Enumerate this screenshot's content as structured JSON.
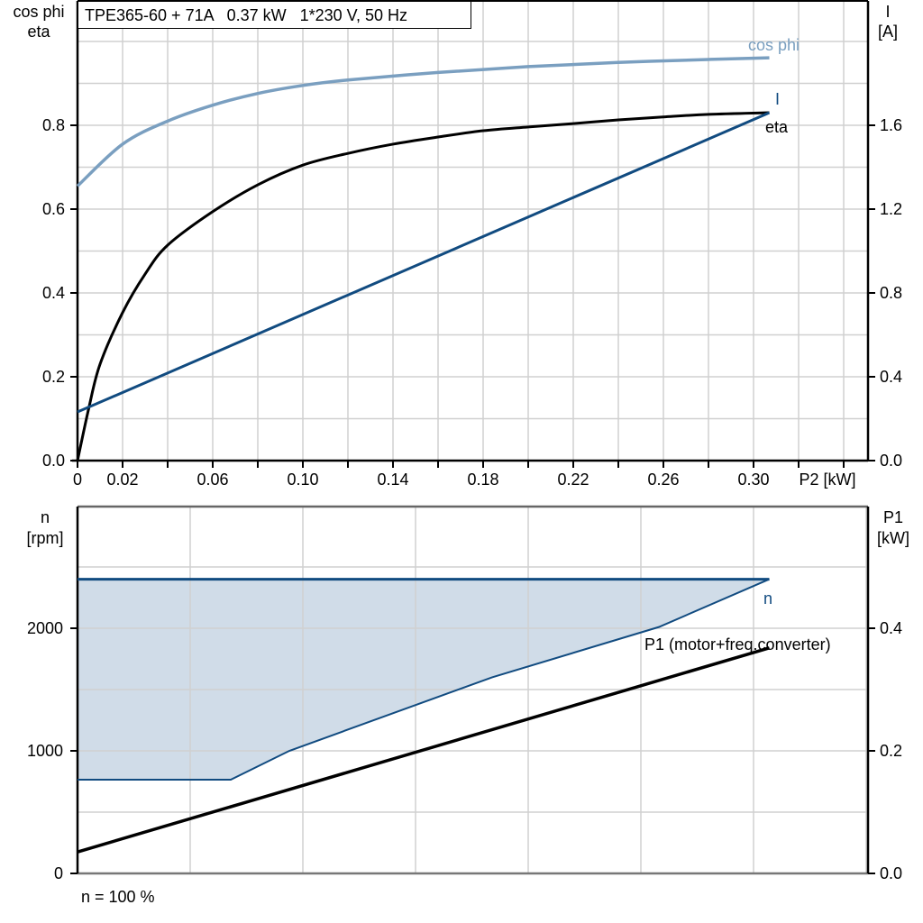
{
  "title": "TPE365-60 + 71A   0.37 kW   1*230 V, 50 Hz",
  "colors": {
    "cos_phi": "#7a9fc0",
    "eta": "#000000",
    "current": "#114b80",
    "speed": "#114b80",
    "speed_fill": "#d0dce8",
    "p1": "#000000",
    "grid": "#d0d0d0"
  },
  "top_chart": {
    "left_axis_label_line1": "cos phi",
    "left_axis_label_line2": "eta",
    "right_axis_label_line1": "I",
    "right_axis_label_line2": "[A]",
    "x_axis_label": "P2 [kW]",
    "x_tick_labels": [
      "0",
      "0.02",
      "0.06",
      "0.10",
      "0.14",
      "0.18",
      "0.22",
      "0.26",
      "0.30"
    ],
    "left_tick_labels": [
      "0.0",
      "0.2",
      "0.4",
      "0.6",
      "0.8"
    ],
    "right_tick_labels": [
      "0.0",
      "0.4",
      "0.8",
      "1.2",
      "1.6"
    ],
    "curve_labels": {
      "cos_phi": "cos phi",
      "I": "I",
      "eta": "eta"
    }
  },
  "bottom_chart": {
    "left_axis_label_line1": "n",
    "left_axis_label_line2": "[rpm]",
    "right_axis_label_line1": "P1",
    "right_axis_label_line2": "[kW]",
    "left_tick_labels": [
      "0",
      "1000",
      "2000"
    ],
    "right_tick_labels": [
      "0.0",
      "0.2",
      "0.4"
    ],
    "curve_labels": {
      "n": "n",
      "P1": "P1 (motor+freq.converter)"
    },
    "footnote": "n = 100 %"
  },
  "chart_data": [
    {
      "type": "line",
      "title": "TPE365-60 + 71A   0.37 kW   1*230 V, 50 Hz",
      "xlabel": "P2 [kW]",
      "ylabel": "cos phi / eta",
      "y2label": "I [A]",
      "xlim": [
        0,
        0.35
      ],
      "ylim": [
        0,
        1.09
      ],
      "y2lim": [
        0,
        2.18
      ],
      "grid": true,
      "x_ticks": [
        0,
        0.02,
        0.06,
        0.1,
        0.14,
        0.18,
        0.22,
        0.26,
        0.3
      ],
      "series": [
        {
          "name": "cos phi",
          "axis": "left",
          "x": [
            0,
            0.02,
            0.04,
            0.06,
            0.08,
            0.1,
            0.12,
            0.16,
            0.2,
            0.24,
            0.28,
            0.307
          ],
          "values": [
            0.655,
            0.755,
            0.81,
            0.848,
            0.876,
            0.895,
            0.908,
            0.926,
            0.94,
            0.95,
            0.957,
            0.961
          ]
        },
        {
          "name": "eta",
          "axis": "left",
          "x": [
            0,
            0.005,
            0.01,
            0.02,
            0.03,
            0.04,
            0.06,
            0.08,
            0.1,
            0.12,
            0.14,
            0.16,
            0.18,
            0.2,
            0.22,
            0.24,
            0.26,
            0.28,
            0.307
          ],
          "values": [
            0,
            0.125,
            0.23,
            0.353,
            0.445,
            0.514,
            0.594,
            0.658,
            0.705,
            0.733,
            0.755,
            0.772,
            0.787,
            0.796,
            0.804,
            0.813,
            0.82,
            0.826,
            0.83
          ]
        },
        {
          "name": "I",
          "axis": "right",
          "x": [
            0,
            0.307
          ],
          "values": [
            0.232,
            1.66
          ]
        }
      ],
      "legend": "inline labels at curve ends"
    },
    {
      "type": "area",
      "xlabel": "P2 [kW]",
      "ylabel": "n [rpm]",
      "y2label": "P1 [kW]",
      "xlim": [
        0,
        0.35
      ],
      "ylim": [
        0,
        3000
      ],
      "y2lim": [
        0,
        0.6
      ],
      "grid": true,
      "series": [
        {
          "name": "n (max)",
          "axis": "left",
          "x": [
            0,
            0.307
          ],
          "values": [
            2400,
            2400
          ]
        },
        {
          "name": "n (min)",
          "axis": "left",
          "x": [
            0,
            0.068,
            0.094,
            0.184,
            0.258,
            0.307
          ],
          "values": [
            765,
            765,
            1000,
            1600,
            2010,
            2400
          ]
        },
        {
          "name": "P1 (motor+freq.converter)",
          "axis": "right",
          "x": [
            0,
            0.307
          ],
          "values": [
            0.035,
            0.368
          ]
        }
      ],
      "annotations": [
        "n = 100 %"
      ]
    }
  ]
}
